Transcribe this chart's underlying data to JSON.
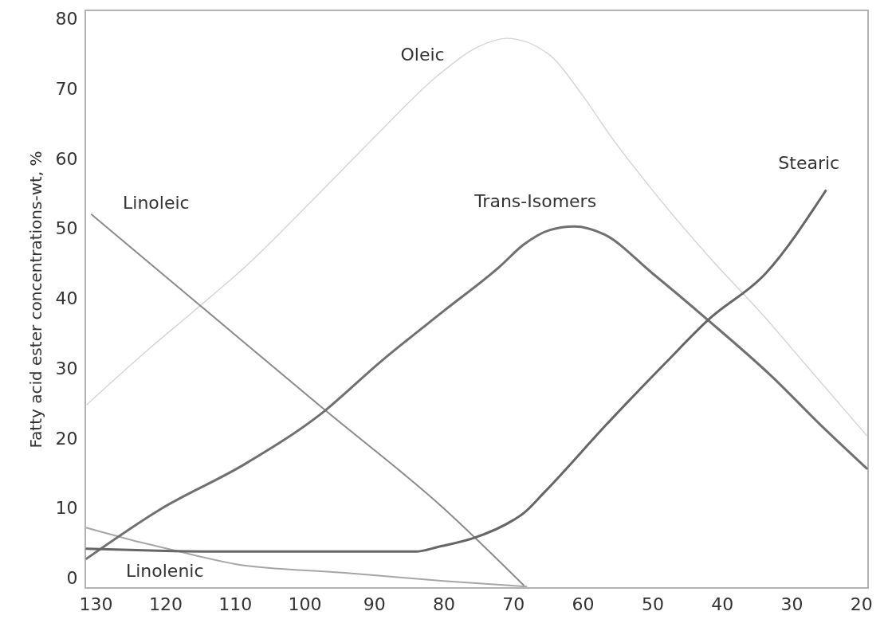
{
  "chart_data": {
    "type": "line",
    "ylabel": "Fatty acid ester concentrations-wt, %",
    "xlim": [
      131.5,
      19
    ],
    "ylim": [
      -1.4,
      81.2
    ],
    "xticks": [
      130,
      120,
      110,
      100,
      90,
      80,
      70,
      60,
      50,
      40,
      30,
      20
    ],
    "yticks": [
      0,
      10,
      20,
      30,
      40,
      50,
      60,
      70,
      80
    ],
    "series": [
      {
        "name": "Oleic",
        "color": "#d4d4d4",
        "x": [
          131.3,
          122.1,
          115.9,
          108,
          98.7,
          90,
          80.7,
          75,
          71,
          65,
          60,
          56.2,
          50,
          41.9,
          34,
          27.6,
          19.2
        ],
        "values": [
          24.8,
          33,
          38.2,
          45,
          54.2,
          63,
          72,
          76,
          77.2,
          75,
          69,
          63.5,
          55.5,
          46,
          37.5,
          30.1,
          20.4
        ]
      },
      {
        "name": "Linoleic",
        "color": "#8a8a8a",
        "x": [
          130.6,
          115,
          97,
          80,
          68.5
        ],
        "values": [
          52,
          39,
          24,
          10,
          -1
        ]
      },
      {
        "name": "Linolenic",
        "color": "#a6a6a6",
        "x": [
          131.3,
          125,
          119.2,
          109.8,
          94.6,
          80,
          68.1
        ],
        "values": [
          7.2,
          5.5,
          4.1,
          2,
          0.8,
          -0.4,
          -1.2
        ]
      },
      {
        "name": "Trans-Isomers",
        "color": "#707070",
        "x": [
          131.3,
          120.8,
          108.6,
          97.5,
          89,
          80,
          72,
          68.5,
          64.7,
          61.2,
          57,
          50,
          42,
          33,
          25.5,
          19.2
        ],
        "values": [
          2.8,
          9.8,
          16.3,
          23.6,
          31,
          38.2,
          44.5,
          47.7,
          49.8,
          50.3,
          49.2,
          43.6,
          36.9,
          29,
          21.6,
          15.7
        ]
      },
      {
        "name": "Stearic",
        "color": "#666666",
        "x": [
          131.3,
          120,
          110,
          95,
          84,
          80.7,
          75.8,
          70,
          68.5,
          65.6,
          56.2,
          48,
          41.9,
          33.7,
          25.1
        ],
        "values": [
          4.2,
          3.9,
          3.8,
          3.8,
          3.8,
          4.5,
          5.7,
          8.3,
          9.3,
          12.2,
          22.4,
          30.9,
          37,
          43.6,
          55.4
        ]
      }
    ]
  }
}
